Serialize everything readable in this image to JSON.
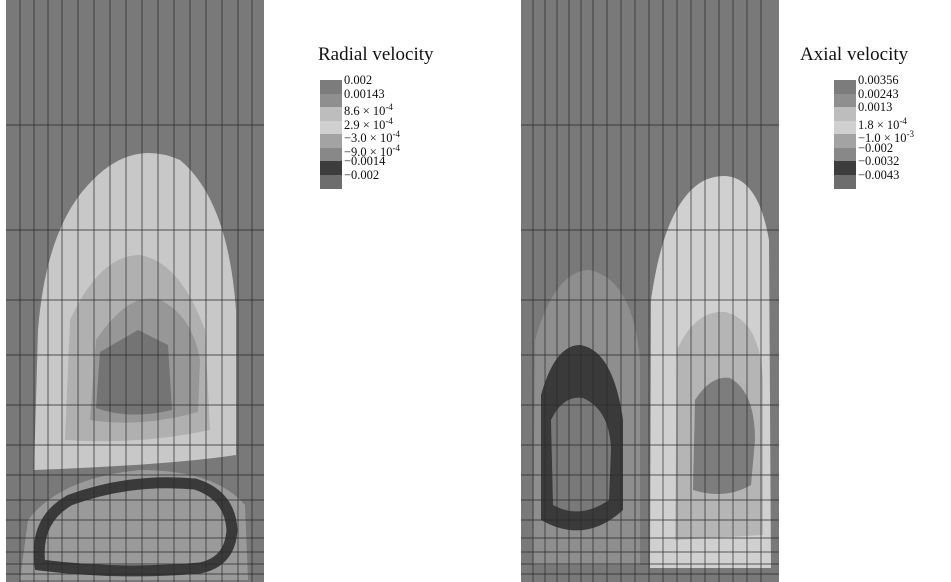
{
  "chart_data": [
    {
      "type": "heatmap",
      "title": "Radial velocity",
      "legend_placement": "right",
      "levels": [
        "0.002",
        "0.00143",
        "8.6 × 10^-4",
        "2.9 × 10^-4",
        "−3.0 × 10^-4",
        "−9.0 × 10^-4",
        "−0.0014",
        "−0.002"
      ],
      "level_colors": [
        "#7c7c7c",
        "#8f8f8f",
        "#bdbdbd",
        "#d0d0d0",
        "#a3a3a3",
        "#888888",
        "#3d3d3d",
        "#6d6d6d"
      ],
      "grid": true
    },
    {
      "type": "heatmap",
      "title": "Axial velocity",
      "legend_placement": "right",
      "levels": [
        "0.00356",
        "0.00243",
        "0.0013",
        "1.8 × 10^-4",
        "−1.0 × 10^-3",
        "−0.002",
        "−0.0032",
        "−0.0043"
      ],
      "level_colors": [
        "#7c7c7c",
        "#8f8f8f",
        "#bdbdbd",
        "#d0d0d0",
        "#a3a3a3",
        "#888888",
        "#3d3d3d",
        "#6d6d6d"
      ],
      "grid": true
    }
  ]
}
